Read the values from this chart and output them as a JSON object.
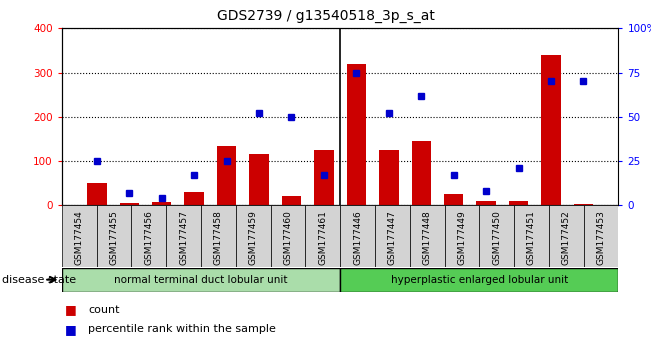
{
  "title": "GDS2739 / g13540518_3p_s_at",
  "samples": [
    "GSM177454",
    "GSM177455",
    "GSM177456",
    "GSM177457",
    "GSM177458",
    "GSM177459",
    "GSM177460",
    "GSM177461",
    "GSM177446",
    "GSM177447",
    "GSM177448",
    "GSM177449",
    "GSM177450",
    "GSM177451",
    "GSM177452",
    "GSM177453"
  ],
  "counts": [
    50,
    5,
    8,
    30,
    135,
    115,
    20,
    125,
    320,
    125,
    145,
    25,
    10,
    10,
    340,
    3
  ],
  "percentiles": [
    25,
    7,
    4,
    17,
    25,
    52,
    50,
    17,
    75,
    52,
    62,
    17,
    8,
    21,
    70,
    70
  ],
  "group1_label": "normal terminal duct lobular unit",
  "group2_label": "hyperplastic enlarged lobular unit",
  "group1_count": 8,
  "group2_count": 8,
  "bar_color": "#cc0000",
  "dot_color": "#0000cc",
  "ylim_left": [
    0,
    400
  ],
  "ylim_right": [
    0,
    100
  ],
  "yticks_left": [
    0,
    100,
    200,
    300,
    400
  ],
  "yticks_right": [
    0,
    25,
    50,
    75,
    100
  ],
  "group1_color": "#aaddaa",
  "group2_color": "#55cc55",
  "bg_color": "#d3d3d3",
  "disease_state_label": "disease state"
}
